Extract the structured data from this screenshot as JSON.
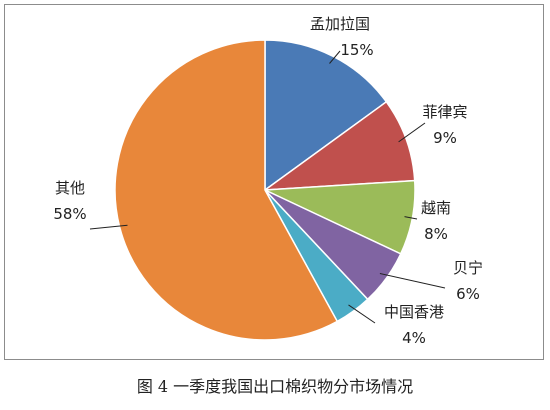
{
  "chart_data": {
    "type": "pie",
    "caption": "图 4 一季度我国出口棉织物分市场情况",
    "slices": [
      {
        "name": "孟加拉国",
        "value": 15,
        "label": "15%",
        "color": "#4a7ab6"
      },
      {
        "name": "菲律宾",
        "value": 9,
        "label": "9%",
        "color": "#c0504d"
      },
      {
        "name": "越南",
        "value": 8,
        "label": "8%",
        "color": "#9bbb59"
      },
      {
        "name": "贝宁",
        "value": 6,
        "label": "6%",
        "color": "#8064a2"
      },
      {
        "name": "中国香港",
        "value": 4,
        "label": "4%",
        "color": "#4bacc6"
      },
      {
        "name": "其他",
        "value": 58,
        "label": "58%",
        "color": "#e8873a"
      }
    ]
  }
}
